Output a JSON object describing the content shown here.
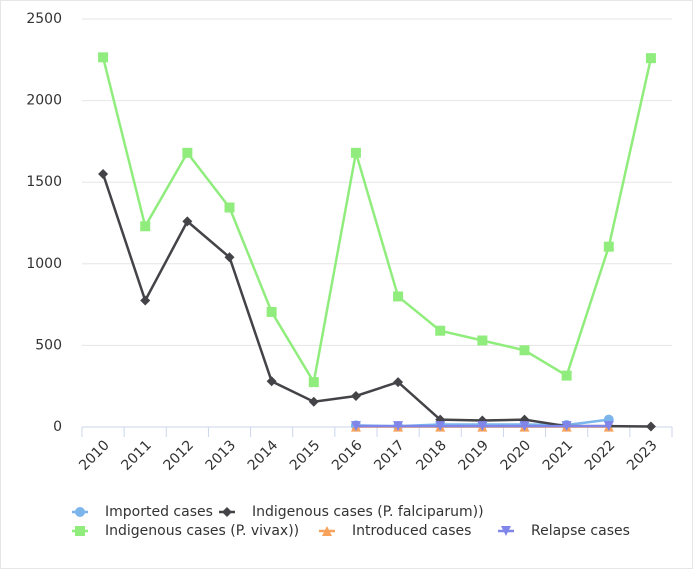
{
  "chart_data": {
    "type": "line",
    "categories": [
      "2010",
      "2011",
      "2012",
      "2013",
      "2014",
      "2015",
      "2016",
      "2017",
      "2018",
      "2019",
      "2020",
      "2021",
      "2022",
      "2023"
    ],
    "ylim": [
      0,
      2500
    ],
    "yticks": [
      0,
      500,
      1000,
      1500,
      2000,
      2500
    ],
    "grid": true,
    "series": [
      {
        "name": "Imported cases",
        "color": "#7cb5ec",
        "marker": "circle",
        "values": [
          null,
          null,
          null,
          null,
          null,
          null,
          10,
          5,
          15,
          15,
          15,
          12,
          45,
          null
        ]
      },
      {
        "name": "Indigenous cases (P. falciparum))",
        "color": "#434348",
        "marker": "diamond",
        "values": [
          1550,
          775,
          1260,
          1040,
          280,
          155,
          190,
          275,
          45,
          40,
          45,
          5,
          5,
          3
        ]
      },
      {
        "name": "Indigenous cases (P. vivax))",
        "color": "#90ed7d",
        "marker": "square",
        "values": [
          2265,
          1230,
          1680,
          1345,
          705,
          275,
          1680,
          800,
          590,
          530,
          470,
          315,
          1105,
          2260
        ]
      },
      {
        "name": "Introduced cases",
        "color": "#f7a35c",
        "marker": "triangle",
        "values": [
          null,
          null,
          null,
          null,
          null,
          null,
          2,
          2,
          2,
          2,
          2,
          2,
          2,
          null
        ]
      },
      {
        "name": "Relapse cases",
        "color": "#8085e9",
        "marker": "triangle-down",
        "values": [
          null,
          null,
          null,
          null,
          null,
          null,
          5,
          5,
          5,
          5,
          5,
          5,
          5,
          null
        ]
      }
    ]
  }
}
